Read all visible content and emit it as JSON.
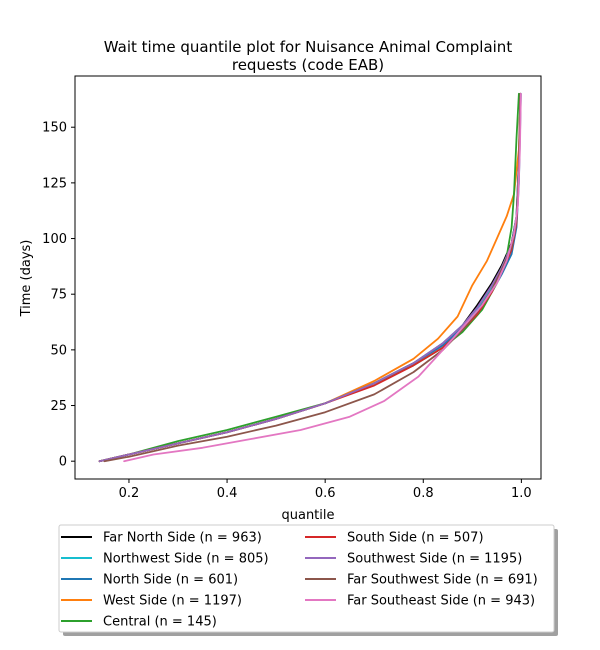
{
  "chart_data": {
    "type": "line",
    "title_line1": "Wait time quantile plot for Nuisance Animal Complaint",
    "title_line2": "requests (code EAB)",
    "xlabel": "quantile",
    "ylabel": "Time (days)",
    "xlim": [
      0.09,
      1.04
    ],
    "ylim": [
      -8,
      173
    ],
    "x_ticks": [
      0.2,
      0.4,
      0.6,
      0.8,
      1.0
    ],
    "x_tick_labels": [
      "0.2",
      "0.4",
      "0.6",
      "0.8",
      "1.0"
    ],
    "y_ticks": [
      0,
      25,
      50,
      75,
      100,
      125,
      150
    ],
    "y_tick_labels": [
      "0",
      "25",
      "50",
      "75",
      "100",
      "125",
      "150"
    ],
    "grid": false,
    "legend_placement": "below plot, two columns",
    "series": [
      {
        "name": "Far North Side (n = 963)",
        "color": "#000000",
        "x": [
          0.14,
          0.2,
          0.3,
          0.4,
          0.5,
          0.6,
          0.7,
          0.78,
          0.84,
          0.88,
          0.91,
          0.94,
          0.96,
          0.98,
          0.99,
          0.995,
          0.998
        ],
        "y": [
          0,
          3,
          8,
          13,
          19,
          26,
          35,
          44,
          53,
          61,
          70,
          80,
          88,
          98,
          110,
          135,
          165
        ]
      },
      {
        "name": "Northwest Side (n = 805)",
        "color": "#17becf",
        "x": [
          0.14,
          0.2,
          0.3,
          0.4,
          0.5,
          0.6,
          0.7,
          0.78,
          0.84,
          0.88,
          0.91,
          0.94,
          0.96,
          0.98,
          0.99,
          0.995,
          0.998
        ],
        "y": [
          0,
          3,
          8,
          13,
          19,
          26,
          35,
          44,
          53,
          61,
          68,
          78,
          87,
          97,
          110,
          135,
          165
        ]
      },
      {
        "name": "North Side (n = 601)",
        "color": "#1f77b4",
        "x": [
          0.14,
          0.2,
          0.3,
          0.4,
          0.5,
          0.6,
          0.7,
          0.78,
          0.84,
          0.88,
          0.91,
          0.94,
          0.96,
          0.98,
          0.99,
          0.995,
          0.999
        ],
        "y": [
          0,
          3,
          8,
          13,
          19,
          26,
          35,
          44,
          52,
          60,
          67,
          76,
          84,
          93,
          105,
          125,
          165
        ]
      },
      {
        "name": "West Side (n = 1197)",
        "color": "#ff7f0e",
        "x": [
          0.14,
          0.2,
          0.3,
          0.4,
          0.5,
          0.6,
          0.7,
          0.78,
          0.83,
          0.87,
          0.9,
          0.93,
          0.95,
          0.97,
          0.985,
          0.995,
          0.998
        ],
        "y": [
          0,
          3,
          8,
          13,
          19,
          26,
          36,
          46,
          55,
          65,
          79,
          90,
          100,
          110,
          120,
          140,
          165
        ]
      },
      {
        "name": "Central (n = 145)",
        "color": "#2ca02c",
        "x": [
          0.14,
          0.2,
          0.3,
          0.4,
          0.5,
          0.6,
          0.7,
          0.78,
          0.84,
          0.88,
          0.92,
          0.95,
          0.97,
          0.98,
          0.985,
          0.99,
          0.995
        ],
        "y": [
          0,
          3,
          9,
          14,
          20,
          26,
          35,
          43,
          51,
          58,
          68,
          80,
          92,
          105,
          120,
          145,
          165
        ]
      },
      {
        "name": "South Side (n = 507)",
        "color": "#d62728",
        "x": [
          0.14,
          0.2,
          0.3,
          0.4,
          0.5,
          0.6,
          0.7,
          0.78,
          0.84,
          0.88,
          0.91,
          0.94,
          0.96,
          0.98,
          0.99,
          0.995,
          0.998
        ],
        "y": [
          0,
          3,
          8,
          13,
          19,
          26,
          34,
          43,
          51,
          59,
          66,
          76,
          85,
          95,
          107,
          130,
          165
        ]
      },
      {
        "name": "Southwest Side (n = 1195)",
        "color": "#9467bd",
        "x": [
          0.14,
          0.2,
          0.3,
          0.4,
          0.5,
          0.6,
          0.7,
          0.78,
          0.84,
          0.88,
          0.91,
          0.94,
          0.96,
          0.98,
          0.99,
          0.995,
          0.998
        ],
        "y": [
          0,
          3,
          8,
          13,
          19,
          26,
          35,
          44,
          53,
          61,
          69,
          79,
          87,
          97,
          109,
          133,
          165
        ]
      },
      {
        "name": "Far Southwest Side (n = 691)",
        "color": "#8c564b",
        "x": [
          0.15,
          0.2,
          0.3,
          0.4,
          0.5,
          0.6,
          0.7,
          0.78,
          0.84,
          0.88,
          0.91,
          0.94,
          0.96,
          0.98,
          0.99,
          0.995,
          0.998
        ],
        "y": [
          0,
          2,
          7,
          11,
          16,
          22,
          30,
          40,
          50,
          59,
          67,
          77,
          86,
          96,
          108,
          130,
          165
        ]
      },
      {
        "name": "Far Southeast Side (n = 943)",
        "color": "#e377c2",
        "x": [
          0.19,
          0.25,
          0.35,
          0.45,
          0.55,
          0.65,
          0.72,
          0.79,
          0.84,
          0.88,
          0.92,
          0.95,
          0.97,
          0.985,
          0.993,
          0.997,
          0.999
        ],
        "y": [
          0,
          3,
          6,
          10,
          14,
          20,
          27,
          38,
          50,
          60,
          70,
          80,
          90,
          102,
          115,
          140,
          165
        ]
      }
    ]
  }
}
